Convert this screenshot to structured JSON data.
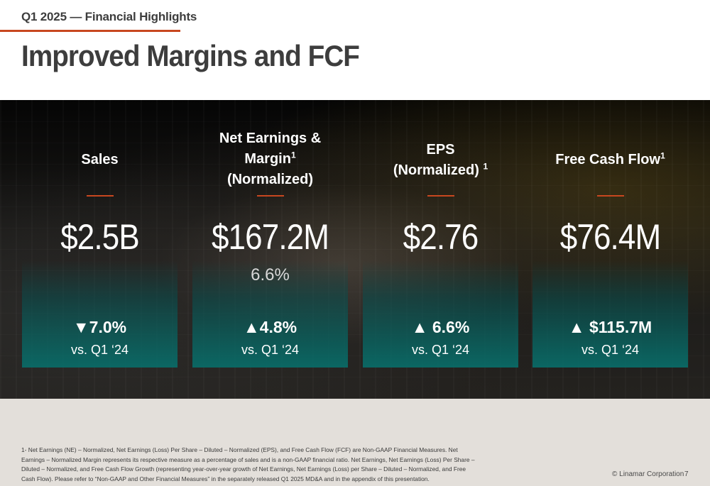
{
  "header": {
    "kicker": "Q1 2025 — Financial Highlights",
    "title": "Improved Margins and FCF"
  },
  "colors": {
    "accent": "#c8471f",
    "teal": "#086e6a",
    "footer_bg": "#e3dfda"
  },
  "metrics": [
    {
      "label_lines": [
        "Sales"
      ],
      "footnote_marker": "",
      "value": "$2.5B",
      "sub_value": "",
      "change": "▼7.0%",
      "direction": "down",
      "compare": "vs. Q1 ‘24"
    },
    {
      "label_lines": [
        "Net Earnings &",
        "Margin",
        "(Normalized)"
      ],
      "footnote_marker": "1",
      "value": "$167.2M",
      "sub_value": "6.6%",
      "change": "▲4.8%",
      "direction": "up",
      "compare": "vs. Q1 ‘24"
    },
    {
      "label_lines": [
        "EPS",
        "(Normalized)"
      ],
      "footnote_marker": "1",
      "value": "$2.76",
      "sub_value": "",
      "change": "▲ 6.6%",
      "direction": "up",
      "compare": "vs. Q1 ‘24"
    },
    {
      "label_lines": [
        "Free Cash Flow"
      ],
      "footnote_marker": "1",
      "value": "$76.4M",
      "sub_value": "",
      "change": "▲ $115.7M",
      "direction": "up",
      "compare": "vs. Q1 ‘24"
    }
  ],
  "footer": {
    "footnote": "1- Net Earnings (NE) – Normalized, Net Earnings (Loss) Per Share – Diluted – Normalized (EPS), and Free Cash Flow (FCF) are Non-GAAP Financial Measures. Net Earnings – Normalized Margin represents its respective measure as a percentage of sales and is a non-GAAP financial ratio. Net Earnings, Net Earnings (Loss) Per Share – Diluted – Normalized, and Free Cash Flow Growth (representing year-over-year growth of Net Earnings, Net Earnings (Loss) per Share – Diluted – Normalized, and Free Cash Flow). Please refer to “Non-GAAP and Other Financial Measures” in the separately released Q1 2025 MD&A and in the appendix of this presentation.",
    "copyright": "© Linamar Corporation",
    "page_number": "7"
  }
}
